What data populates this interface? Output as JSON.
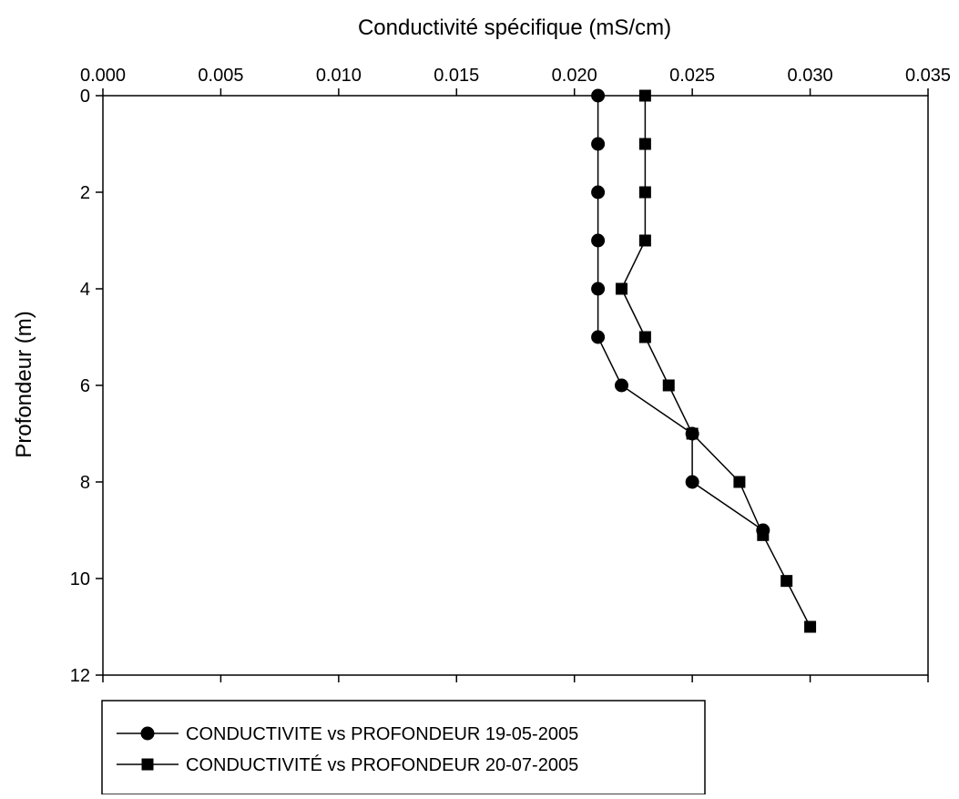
{
  "chart_data": {
    "type": "line",
    "title": "",
    "xlabel": "Conductivité spécifique (mS/cm)",
    "ylabel": "Profondeur (m)",
    "x_axis_position": "top",
    "y_axis_inverted": true,
    "xlim": [
      0.0,
      0.035
    ],
    "ylim": [
      0,
      12
    ],
    "x_ticks": [
      "0.000",
      "0.005",
      "0.010",
      "0.015",
      "0.020",
      "0.025",
      "0.030",
      "0.035"
    ],
    "y_ticks": [
      "0",
      "2",
      "4",
      "6",
      "8",
      "10",
      "12"
    ],
    "grid": false,
    "legend_position": "bottom-left",
    "series": [
      {
        "name": "CONDUCTIVITE vs PROFONDEUR 19-05-2005",
        "marker": "circle",
        "color": "#000000",
        "points": [
          {
            "x": 0.021,
            "y": 0
          },
          {
            "x": 0.021,
            "y": 1
          },
          {
            "x": 0.021,
            "y": 2
          },
          {
            "x": 0.021,
            "y": 3
          },
          {
            "x": 0.021,
            "y": 4
          },
          {
            "x": 0.021,
            "y": 5
          },
          {
            "x": 0.022,
            "y": 6
          },
          {
            "x": 0.025,
            "y": 7
          },
          {
            "x": 0.025,
            "y": 8
          },
          {
            "x": 0.028,
            "y": 9
          }
        ]
      },
      {
        "name": "CONDUCTIVITÉ vs PROFONDEUR 20-07-2005",
        "marker": "square",
        "color": "#000000",
        "points": [
          {
            "x": 0.023,
            "y": 0
          },
          {
            "x": 0.023,
            "y": 1
          },
          {
            "x": 0.023,
            "y": 2
          },
          {
            "x": 0.023,
            "y": 3
          },
          {
            "x": 0.022,
            "y": 4
          },
          {
            "x": 0.023,
            "y": 5
          },
          {
            "x": 0.024,
            "y": 6
          },
          {
            "x": 0.025,
            "y": 7
          },
          {
            "x": 0.027,
            "y": 8
          },
          {
            "x": 0.028,
            "y": 9.1
          },
          {
            "x": 0.029,
            "y": 10.05
          },
          {
            "x": 0.03,
            "y": 11
          }
        ]
      }
    ]
  }
}
